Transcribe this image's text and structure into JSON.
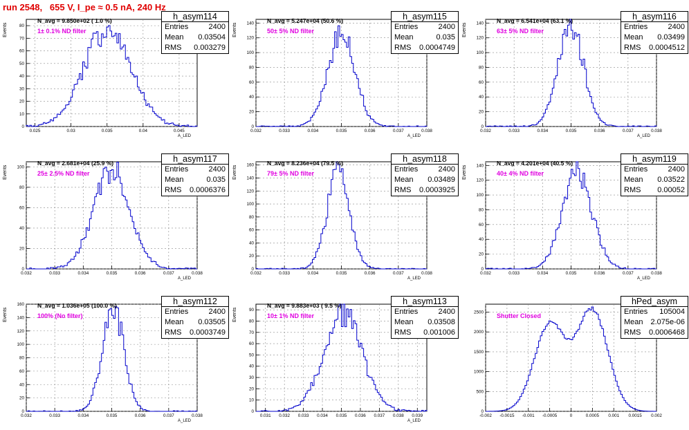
{
  "page_title": "run 2548,   655 V, I_pe ≈ 0.5 nA, 240 Hz",
  "colors": {
    "title": "#e00000",
    "filter_label": "#e000e0",
    "hist_line": "#0000cc"
  },
  "chart_data": [
    {
      "type": "histogram",
      "name": "h_asym114",
      "stats": {
        "entries_label": "Entries",
        "entries": "2400",
        "mean_label": "Mean",
        "mean": "0.03504",
        "rms_label": "RMS",
        "rms": "0.003279"
      },
      "navg": "N_avg = 9.850e+02 ( 1.0 %)",
      "filter": "1± 0.1% ND filter",
      "ylabel": "Events",
      "xlabel": "A_LED",
      "xlim": [
        0.0238,
        0.0475
      ],
      "ylim": [
        0,
        85
      ],
      "xticks": [
        "0.025",
        "0.03",
        "0.035",
        "0.04",
        "0.045"
      ],
      "xtick_values": [
        0.025,
        0.03,
        0.035,
        0.04,
        0.045
      ],
      "yticks": [
        "0",
        "10",
        "20",
        "30",
        "40",
        "50",
        "60",
        "70",
        "80"
      ],
      "ytick_values": [
        0,
        10,
        20,
        30,
        40,
        50,
        60,
        70,
        80
      ],
      "mean_value": 0.03504,
      "rms_value": 0.003279,
      "peak": 76,
      "bimodal": false
    },
    {
      "type": "histogram",
      "name": "h_asym115",
      "stats": {
        "entries_label": "Entries",
        "entries": "2400",
        "mean_label": "Mean",
        "mean": "0.035",
        "rms_label": "RMS",
        "rms": "0.0004749"
      },
      "navg": "N_avg = 5.247e+04 (50.6 %)",
      "filter": "50± 5% ND filter",
      "ylabel": "Events",
      "xlabel": "A_LED",
      "xlim": [
        0.032,
        0.038
      ],
      "ylim": [
        0,
        145
      ],
      "xticks": [
        "0.032",
        "0.033",
        "0.034",
        "0.035",
        "0.036",
        "0.037",
        "0.038"
      ],
      "xtick_values": [
        0.032,
        0.033,
        0.034,
        0.035,
        0.036,
        0.037,
        0.038
      ],
      "yticks": [
        "0",
        "20",
        "40",
        "60",
        "80",
        "100",
        "120",
        "140"
      ],
      "ytick_values": [
        0,
        20,
        40,
        60,
        80,
        100,
        120,
        140
      ],
      "mean_value": 0.035,
      "rms_value": 0.0004749,
      "peak": 128,
      "bimodal": false
    },
    {
      "type": "histogram",
      "name": "h_asym116",
      "stats": {
        "entries_label": "Entries",
        "entries": "2400",
        "mean_label": "Mean",
        "mean": "0.03499",
        "rms_label": "RMS",
        "rms": "0.0004512"
      },
      "navg": "N_avg = 6.541e+04 (63.1 %)",
      "filter": "63± 5% ND filter",
      "ylabel": "Events",
      "xlabel": "A_LED",
      "xlim": [
        0.032,
        0.038
      ],
      "ylim": [
        0,
        145
      ],
      "xticks": [
        "0.032",
        "0.033",
        "0.034",
        "0.035",
        "0.036",
        "0.037",
        "0.038"
      ],
      "xtick_values": [
        0.032,
        0.033,
        0.034,
        0.035,
        0.036,
        0.037,
        0.038
      ],
      "yticks": [
        "0",
        "20",
        "40",
        "60",
        "80",
        "100",
        "120",
        "140"
      ],
      "ytick_values": [
        0,
        20,
        40,
        60,
        80,
        100,
        120,
        140
      ],
      "mean_value": 0.03499,
      "rms_value": 0.0004512,
      "peak": 135,
      "bimodal": false
    },
    {
      "type": "histogram",
      "name": "h_asym117",
      "stats": {
        "entries_label": "Entries",
        "entries": "2400",
        "mean_label": "Mean",
        "mean": "0.035",
        "rms_label": "RMS",
        "rms": "0.0006376"
      },
      "navg": "N_avg = 2.681e+04 (25.9 %)",
      "filter": "25± 2.5% ND filter",
      "ylabel": "Events",
      "xlabel": "A_LED",
      "xlim": [
        0.032,
        0.038
      ],
      "ylim": [
        0,
        105
      ],
      "xticks": [
        "0.032",
        "0.033",
        "0.034",
        "0.035",
        "0.036",
        "0.037",
        "0.038"
      ],
      "xtick_values": [
        0.032,
        0.033,
        0.034,
        0.035,
        0.036,
        0.037,
        0.038
      ],
      "yticks": [
        "0",
        "20",
        "40",
        "60",
        "80",
        "100"
      ],
      "ytick_values": [
        0,
        20,
        40,
        60,
        80,
        100
      ],
      "mean_value": 0.035,
      "rms_value": 0.0006376,
      "peak": 97,
      "bimodal": false
    },
    {
      "type": "histogram",
      "name": "h_asym118",
      "stats": {
        "entries_label": "Entries",
        "entries": "2400",
        "mean_label": "Mean",
        "mean": "0.03489",
        "rms_label": "RMS",
        "rms": "0.0003925"
      },
      "navg": "N_avg = 8.236e+04 (79.5 %)",
      "filter": "79± 5% ND filter",
      "ylabel": "Events",
      "xlabel": "A_LED",
      "xlim": [
        0.032,
        0.038
      ],
      "ylim": [
        0,
        165
      ],
      "xticks": [
        "0.032",
        "0.033",
        "0.034",
        "0.035",
        "0.036",
        "0.037",
        "0.038"
      ],
      "xtick_values": [
        0.032,
        0.033,
        0.034,
        0.035,
        0.036,
        0.037,
        0.038
      ],
      "yticks": [
        "0",
        "20",
        "40",
        "60",
        "80",
        "100",
        "120",
        "140",
        "160"
      ],
      "ytick_values": [
        0,
        20,
        40,
        60,
        80,
        100,
        120,
        140,
        160
      ],
      "mean_value": 0.03489,
      "rms_value": 0.0003925,
      "peak": 152,
      "bimodal": false
    },
    {
      "type": "histogram",
      "name": "h_asym119",
      "stats": {
        "entries_label": "Entries",
        "entries": "2400",
        "mean_label": "Mean",
        "mean": "0.03522",
        "rms_label": "RMS",
        "rms": "0.00052"
      },
      "navg": "N_avg = 4.201e+04 (40.5 %)",
      "filter": "40± 4% ND filter",
      "ylabel": "Events",
      "xlabel": "A_LED",
      "xlim": [
        0.032,
        0.038
      ],
      "ylim": [
        0,
        145
      ],
      "xticks": [
        "0.032",
        "0.033",
        "0.034",
        "0.035",
        "0.036",
        "0.037",
        "0.038"
      ],
      "xtick_values": [
        0.032,
        0.033,
        0.034,
        0.035,
        0.036,
        0.037,
        0.038
      ],
      "yticks": [
        "0",
        "20",
        "40",
        "60",
        "80",
        "100",
        "120",
        "140"
      ],
      "ytick_values": [
        0,
        20,
        40,
        60,
        80,
        100,
        120,
        140
      ],
      "mean_value": 0.03522,
      "rms_value": 0.00052,
      "peak": 130,
      "bimodal": false
    },
    {
      "type": "histogram",
      "name": "h_asym112",
      "stats": {
        "entries_label": "Entries",
        "entries": "2400",
        "mean_label": "Mean",
        "mean": "0.03505",
        "rms_label": "RMS",
        "rms": "0.0003749"
      },
      "navg": "N_avg = 1.036e+05 (100.0 %)",
      "filter": "100% (No filter)",
      "ylabel": "Events",
      "xlabel": "A_LED",
      "xlim": [
        0.032,
        0.038
      ],
      "ylim": [
        0,
        160
      ],
      "xticks": [
        "0.032",
        "0.033",
        "0.034",
        "0.035",
        "0.036",
        "0.037",
        "0.038"
      ],
      "xtick_values": [
        0.032,
        0.033,
        0.034,
        0.035,
        0.036,
        0.037,
        0.038
      ],
      "yticks": [
        "0",
        "20",
        "40",
        "60",
        "80",
        "100",
        "120",
        "140",
        "160"
      ],
      "ytick_values": [
        0,
        20,
        40,
        60,
        80,
        100,
        120,
        140,
        160
      ],
      "mean_value": 0.03505,
      "rms_value": 0.0003749,
      "peak": 155,
      "bimodal": false
    },
    {
      "type": "histogram",
      "name": "h_asym113",
      "stats": {
        "entries_label": "Entries",
        "entries": "2400",
        "mean_label": "Mean",
        "mean": "0.03508",
        "rms_label": "RMS",
        "rms": "0.001006"
      },
      "navg": "N_avg = 9.883e+03 ( 9.5 %)",
      "filter": "10± 1% ND filter",
      "ylabel": "Events",
      "xlabel": "A_LED",
      "xlim": [
        0.0305,
        0.0395
      ],
      "ylim": [
        0,
        95
      ],
      "xticks": [
        "0.031",
        "0.032",
        "0.033",
        "0.034",
        "0.035",
        "0.036",
        "0.037",
        "0.038",
        "0.039"
      ],
      "xtick_values": [
        0.031,
        0.032,
        0.033,
        0.034,
        0.035,
        0.036,
        0.037,
        0.038,
        0.039
      ],
      "yticks": [
        "0",
        "10",
        "20",
        "30",
        "40",
        "50",
        "60",
        "70",
        "80",
        "90"
      ],
      "ytick_values": [
        0,
        10,
        20,
        30,
        40,
        50,
        60,
        70,
        80,
        90
      ],
      "mean_value": 0.03508,
      "rms_value": 0.001006,
      "peak": 87,
      "bimodal": false
    },
    {
      "type": "histogram",
      "name": "hPed_asym",
      "stats": {
        "entries_label": "Entries",
        "entries": "105004",
        "mean_label": "Mean",
        "mean": "2.075e-06",
        "rms_label": "RMS",
        "rms": "0.0006468"
      },
      "navg": "",
      "filter": "Shutter Closed",
      "ylabel": "",
      "xlabel": "",
      "xlim": [
        -0.002,
        0.002
      ],
      "ylim": [
        0,
        2700
      ],
      "xticks": [
        "-0.002",
        "-0.0015",
        "-0.001",
        "-0.0005",
        "0",
        "0.0005",
        "0.001",
        "0.0015",
        "0.002"
      ],
      "xtick_values": [
        -0.002,
        -0.0015,
        -0.001,
        -0.0005,
        0,
        0.0005,
        0.001,
        0.0015,
        0.002
      ],
      "yticks": [
        "0",
        "500",
        "1000",
        "1500",
        "2000",
        "2500"
      ],
      "ytick_values": [
        0,
        500,
        1000,
        1500,
        2000,
        2500
      ],
      "mean_value": 2.075e-06,
      "rms_value": 0.0006468,
      "peak": 2550,
      "bimodal": true,
      "modes": [
        -0.0005,
        0.0005
      ],
      "mode_width": 0.00036,
      "mode_peaks": [
        2200,
        2550
      ]
    }
  ]
}
